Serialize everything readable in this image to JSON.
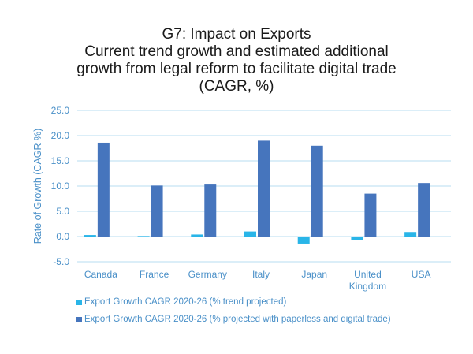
{
  "chart_data": {
    "type": "bar",
    "title": [
      "G7: Impact on Exports",
      "Current trend growth and estimated additional",
      "growth from legal reform to facilitate digital trade",
      "(CAGR, %)"
    ],
    "xlabel": "",
    "ylabel": "Rate of Growth (CAGR %)",
    "ylim": [
      -5,
      25
    ],
    "yticks": [
      "-5.0",
      "0.0",
      "5.0",
      "10.0",
      "15.0",
      "20.0",
      "25.0"
    ],
    "ytick_values": [
      -5,
      0,
      5,
      10,
      15,
      20,
      25
    ],
    "grid": true,
    "legend_position": "bottom",
    "categories": [
      [
        "Canada"
      ],
      [
        "France"
      ],
      [
        "Germany"
      ],
      [
        "Italy"
      ],
      [
        "Japan"
      ],
      [
        "United",
        "Kingdom"
      ],
      [
        "USA"
      ]
    ],
    "series": [
      {
        "name": "Export Growth CAGR 2020-26 (% trend projected)",
        "color": "#29b5e8",
        "values": [
          0.3,
          0.1,
          0.4,
          1.0,
          -1.4,
          -0.7,
          0.9
        ]
      },
      {
        "name": "Export Growth CAGR 2020-26 (% projected with paperless and digital trade)",
        "color": "#4675bd",
        "values": [
          18.6,
          10.1,
          10.3,
          19.0,
          18.0,
          8.5,
          10.6
        ]
      }
    ]
  }
}
